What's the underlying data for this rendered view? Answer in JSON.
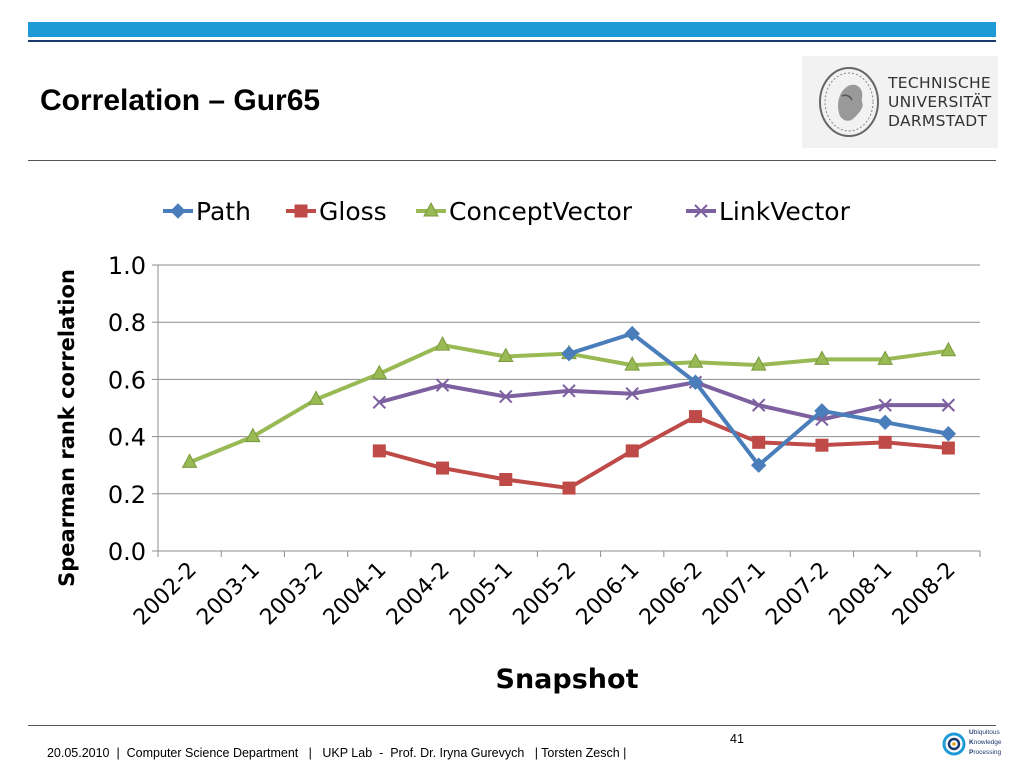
{
  "slide": {
    "title": "Correlation – Gur65",
    "logo_lines": [
      "TECHNISCHE",
      "UNIVERSITÄT",
      "DARMSTADT"
    ],
    "footer": {
      "text": "20.05.2010  |  Computer Science Department   |   UKP Lab  -  Prof. Dr. Iryna Gurevych   | Torsten Zesch |",
      "page": "41"
    },
    "ukp_logo": {
      "lines": [
        {
          "initial": "U",
          "rest": "biquitous"
        },
        {
          "initial": "K",
          "rest": "nowledge"
        },
        {
          "initial": "P",
          "rest": "rocessing"
        }
      ]
    }
  },
  "colors": {
    "accent_bar": "#1e9bd7",
    "path": "#4a7ebb",
    "gloss": "#be4b48",
    "concept": "#98b954",
    "link": "#7d60a0"
  },
  "chart_data": {
    "type": "line",
    "title": "",
    "xlabel": "Snapshot",
    "ylabel": "Spearman rank correlation",
    "categories": [
      "2002-2",
      "2003-1",
      "2003-2",
      "2004-1",
      "2004-2",
      "2005-1",
      "2005-2",
      "2006-1",
      "2006-2",
      "2007-1",
      "2007-2",
      "2008-1",
      "2008-2"
    ],
    "ylim": [
      0,
      1
    ],
    "yticks": [
      "0.0",
      "0.2",
      "0.4",
      "0.6",
      "0.8",
      "1.0"
    ],
    "grid": true,
    "legend_position": "top",
    "series": [
      {
        "name": "Path",
        "marker": "diamond",
        "color": "#4a7ebb",
        "values": [
          null,
          null,
          null,
          null,
          null,
          null,
          0.69,
          0.76,
          0.59,
          0.3,
          0.49,
          0.45,
          0.41
        ]
      },
      {
        "name": "Gloss",
        "marker": "square",
        "color": "#be4b48",
        "values": [
          null,
          null,
          null,
          0.35,
          0.29,
          0.25,
          0.22,
          0.35,
          0.47,
          0.38,
          0.37,
          0.38,
          0.36
        ]
      },
      {
        "name": "ConceptVector",
        "marker": "triangle",
        "color": "#98b954",
        "values": [
          0.31,
          0.4,
          0.53,
          0.62,
          0.72,
          0.68,
          0.69,
          0.65,
          0.66,
          0.65,
          0.67,
          0.67,
          0.7
        ]
      },
      {
        "name": "LinkVector",
        "marker": "x",
        "color": "#7d60a0",
        "values": [
          null,
          null,
          null,
          0.52,
          0.58,
          0.54,
          0.56,
          0.55,
          0.59,
          0.51,
          0.46,
          0.51,
          0.51
        ]
      }
    ]
  }
}
